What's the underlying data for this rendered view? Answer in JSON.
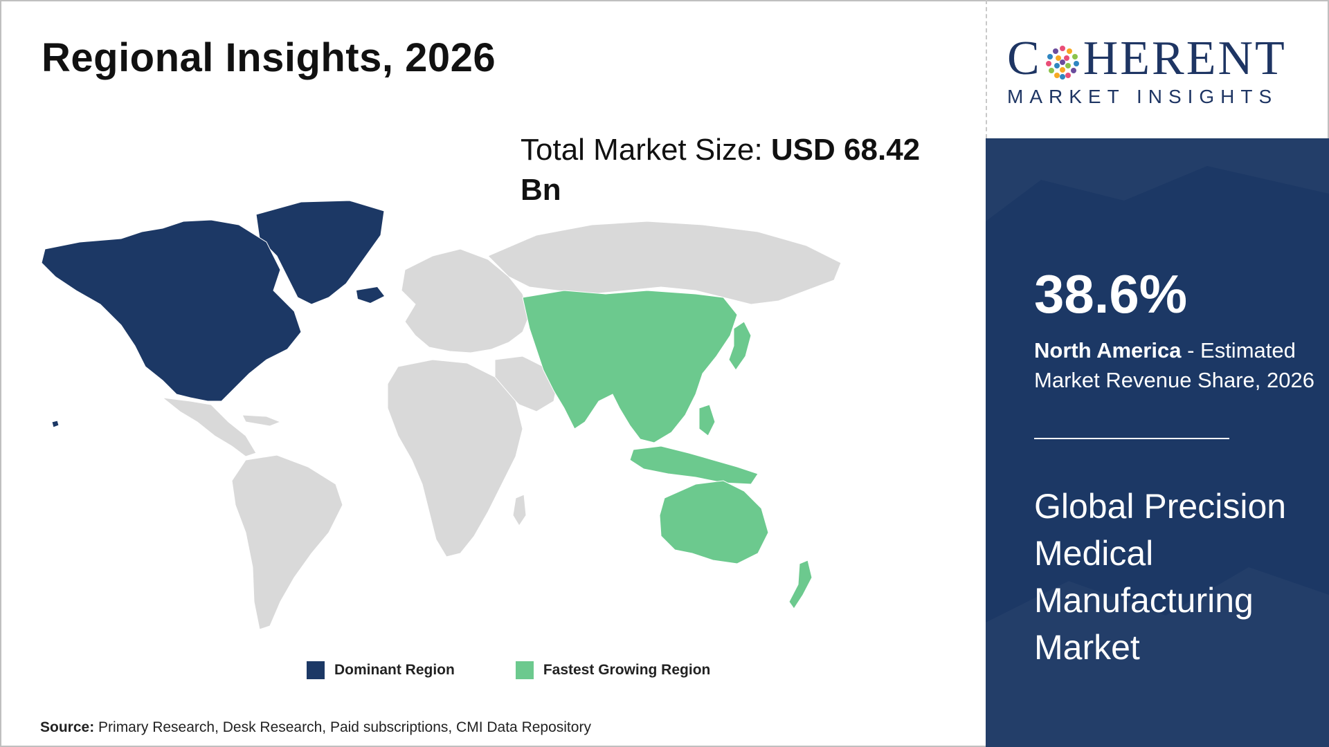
{
  "title": "Regional Insights, 2026",
  "market_size": {
    "label": "Total Market Size: ",
    "value": "USD 68.42 Bn"
  },
  "logo": {
    "main_left": "C",
    "main_right": "HERENT",
    "sub": "MARKET INSIGHTS"
  },
  "panel": {
    "share_value": "38.6%",
    "region": "North America",
    "share_desc": " - Estimated Market Revenue Share, 2026",
    "market_name": "Global Precision Medical Manufacturing Market"
  },
  "legend": {
    "dominant": "Dominant Region",
    "fastest": "Fastest Growing Region"
  },
  "source": {
    "label": "Source:",
    "text": " Primary Research, Desk Research, Paid subscriptions, CMI Data Repository"
  },
  "colors": {
    "dominant": "#1c3865",
    "fastest": "#6cc98e",
    "other": "#d9d9d9",
    "panel": "#1c3865"
  },
  "map": {
    "regions": [
      {
        "name": "North America",
        "category": "dominant"
      },
      {
        "name": "Asia Pacific",
        "category": "fastest"
      },
      {
        "name": "Latin America",
        "category": "other"
      },
      {
        "name": "Europe",
        "category": "other"
      },
      {
        "name": "Middle East & Africa",
        "category": "other"
      }
    ]
  }
}
